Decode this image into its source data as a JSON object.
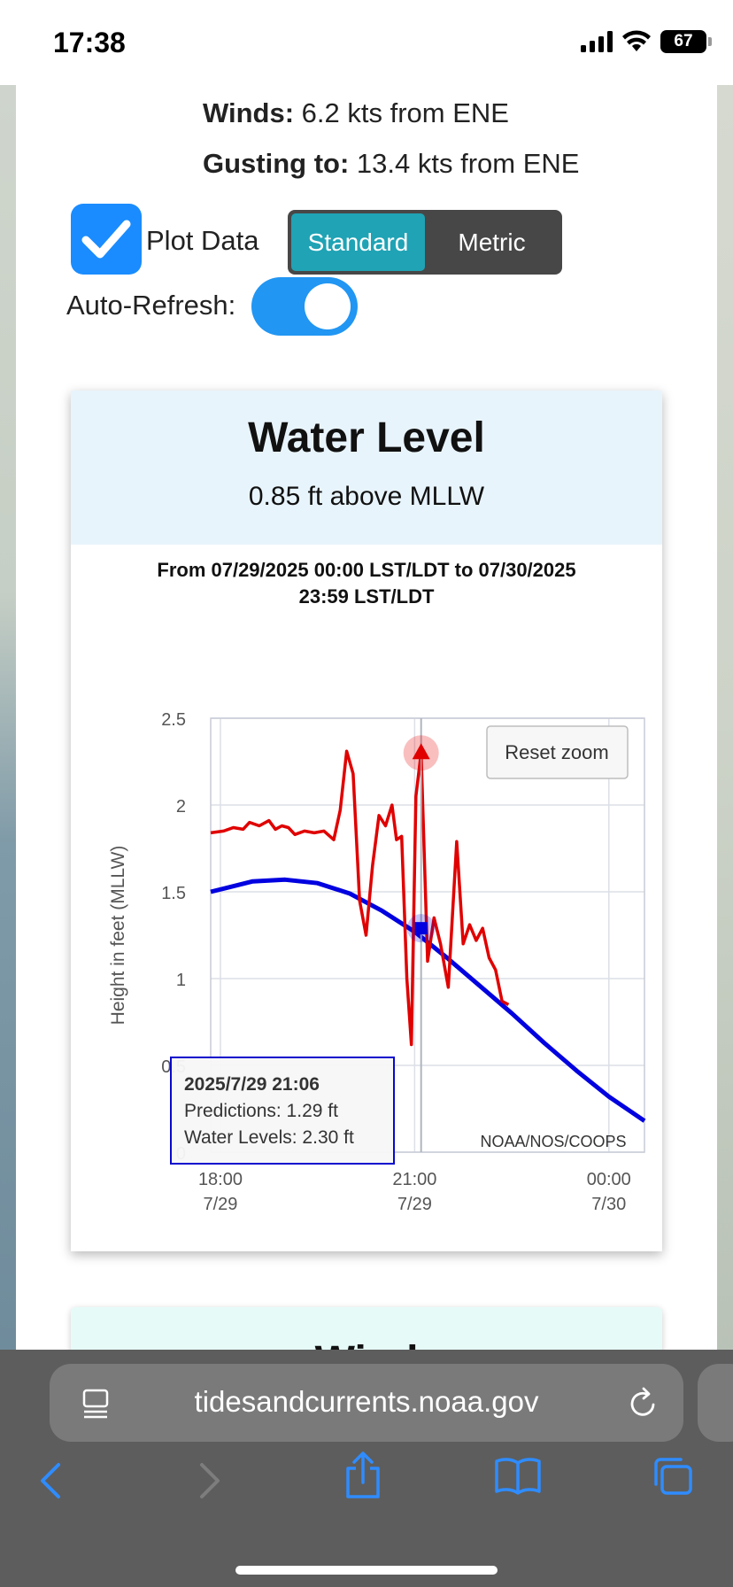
{
  "status": {
    "time": "17:38",
    "battery": "67"
  },
  "winds": {
    "label": "Winds:",
    "value": "6.2 kts from ENE",
    "gust_label": "Gusting to:",
    "gust_value": "13.4 kts from ENE"
  },
  "controls": {
    "plot_data_label": "Plot Data",
    "plot_data_checked": true,
    "units": [
      "Standard",
      "Metric"
    ],
    "units_selected": "Standard",
    "auto_refresh_label": "Auto-Refresh:",
    "auto_refresh_on": true
  },
  "water_card": {
    "title": "Water Level",
    "value": "0.85 ft above MLLW",
    "range": "From 07/29/2025 00:00 LST/LDT to 07/30/2025 23:59 LST/LDT"
  },
  "chart_data": {
    "type": "line",
    "ylabel": "Height in feet (MLLW)",
    "ylim": [
      0,
      2.5
    ],
    "y_ticks": [
      "2.5",
      "2",
      "1.5",
      "1",
      "0.5",
      "0"
    ],
    "x_ticks": [
      {
        "time": "18:00",
        "date": "7/29"
      },
      {
        "time": "21:00",
        "date": "7/29"
      },
      {
        "time": "00:00",
        "date": "7/30"
      }
    ],
    "reset_zoom_label": "Reset zoom",
    "credit": "NOAA/NOS/COOPS",
    "grid": true,
    "series": [
      {
        "name": "Predictions",
        "color": "#0000e0",
        "x": [
          17.85,
          18.5,
          19.0,
          19.5,
          20.0,
          20.5,
          21.0,
          21.5,
          22.0,
          22.5,
          23.0,
          23.5,
          24.0,
          24.55
        ],
        "values": [
          1.5,
          1.56,
          1.57,
          1.55,
          1.49,
          1.39,
          1.27,
          1.12,
          0.96,
          0.8,
          0.63,
          0.47,
          0.32,
          0.18
        ]
      },
      {
        "name": "Water Levels",
        "color": "#e00000",
        "x": [
          17.85,
          18.05,
          18.2,
          18.35,
          18.45,
          18.6,
          18.75,
          18.85,
          18.95,
          19.05,
          19.15,
          19.3,
          19.45,
          19.6,
          19.75,
          19.85,
          19.95,
          20.05,
          20.15,
          20.25,
          20.35,
          20.45,
          20.55,
          20.65,
          20.72,
          20.8,
          20.88,
          20.95,
          21.02,
          21.1,
          21.2,
          21.3,
          21.4,
          21.52,
          21.65,
          21.75,
          21.85,
          21.95,
          22.05,
          22.15,
          22.25,
          22.35,
          22.45
        ],
        "values": [
          1.84,
          1.85,
          1.87,
          1.86,
          1.9,
          1.88,
          1.91,
          1.86,
          1.88,
          1.87,
          1.83,
          1.85,
          1.84,
          1.85,
          1.8,
          1.97,
          2.31,
          2.18,
          1.45,
          1.25,
          1.65,
          1.94,
          1.88,
          2.0,
          1.8,
          1.82,
          1.0,
          0.62,
          2.05,
          2.3,
          1.1,
          1.35,
          1.2,
          0.95,
          1.79,
          1.2,
          1.31,
          1.22,
          1.29,
          1.12,
          1.05,
          0.87,
          0.85
        ]
      }
    ],
    "tooltip": {
      "title": "2025/7/29 21:06",
      "predictions": "Predictions: 1.29 ft",
      "water_levels": "Water Levels: 2.30 ft"
    }
  },
  "next_card": {
    "title": "Wind"
  },
  "browser": {
    "url": "tidesandcurrents.noaa.gov"
  }
}
